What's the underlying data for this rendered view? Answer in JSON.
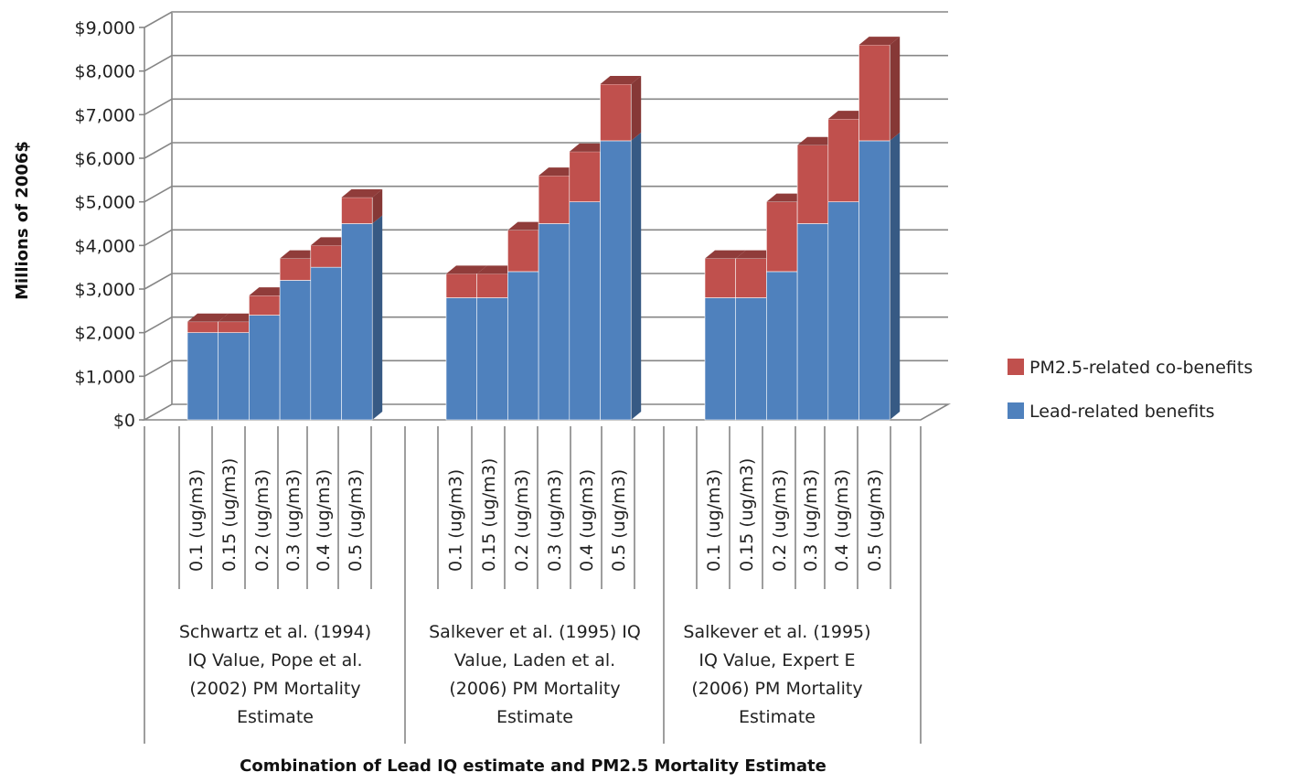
{
  "chart_data": {
    "type": "bar",
    "stacked": true,
    "style": "3d-stacked-column",
    "xlabel": "Combination of Lead IQ estimate and PM2.5 Mortality Estimate",
    "ylabel": "Millions of 2006$",
    "ylim": [
      0,
      9000
    ],
    "yticks": [
      0,
      1000,
      2000,
      3000,
      4000,
      5000,
      6000,
      7000,
      8000,
      9000
    ],
    "ytick_labels": [
      "$0",
      "$1,000",
      "$2,000",
      "$3,000",
      "$4,000",
      "$5,000",
      "$6,000",
      "$7,000",
      "$8,000",
      "$9,000"
    ],
    "grid": true,
    "legend_position": "right",
    "colors": {
      "lead": "#4f81bd",
      "pm": "#c0504d",
      "grid": "#868686"
    },
    "groups": [
      {
        "label": "Schwartz et al. (1994) IQ Value, Pope et al. (2002) PM Mortality Estimate",
        "label_lines": [
          "Schwartz et al. (1994)",
          "IQ Value, Pope et al.",
          "(2002) PM Mortality",
          "Estimate"
        ],
        "categories": [
          "0.1 (ug/m3)",
          "0.15 (ug/m3)",
          "0.2 (ug/m3)",
          "0.3 (ug/m3)",
          "0.4 (ug/m3)",
          "0.5 (ug/m3)"
        ],
        "lead": [
          2000,
          2000,
          2400,
          3200,
          3500,
          4500
        ],
        "pm": [
          250,
          250,
          450,
          500,
          500,
          600
        ]
      },
      {
        "label": "Salkever et al. (1995) IQ Value, Laden et al. (2006) PM Mortality Estimate",
        "label_lines": [
          "Salkever et al. (1995) IQ",
          "Value, Laden et al.",
          "(2006) PM Mortality",
          "Estimate"
        ],
        "categories": [
          "0.1 (ug/m3)",
          "0.15 (ug/m3)",
          "0.2 (ug/m3)",
          "0.3 (ug/m3)",
          "0.4 (ug/m3)",
          "0.5 (ug/m3)"
        ],
        "lead": [
          2800,
          2800,
          3400,
          4500,
          5000,
          6400
        ],
        "pm": [
          550,
          550,
          950,
          1100,
          1150,
          1300
        ]
      },
      {
        "label": "Salkever et al. (1995) IQ Value, Expert E (2006) PM Mortality Estimate",
        "label_lines": [
          "Salkever et al. (1995)",
          "IQ Value, Expert E",
          "(2006) PM Mortality",
          "Estimate"
        ],
        "categories": [
          "0.1 (ug/m3)",
          "0.15 (ug/m3)",
          "0.2 (ug/m3)",
          "0.3 (ug/m3)",
          "0.4 (ug/m3)",
          "0.5 (ug/m3)"
        ],
        "lead": [
          2800,
          2800,
          3400,
          4500,
          5000,
          6400
        ],
        "pm": [
          900,
          900,
          1600,
          1800,
          1900,
          2200
        ]
      }
    ],
    "series": [
      {
        "name": "PM2.5-related co-benefits",
        "key": "pm"
      },
      {
        "name": "Lead-related benefits",
        "key": "lead"
      }
    ]
  }
}
